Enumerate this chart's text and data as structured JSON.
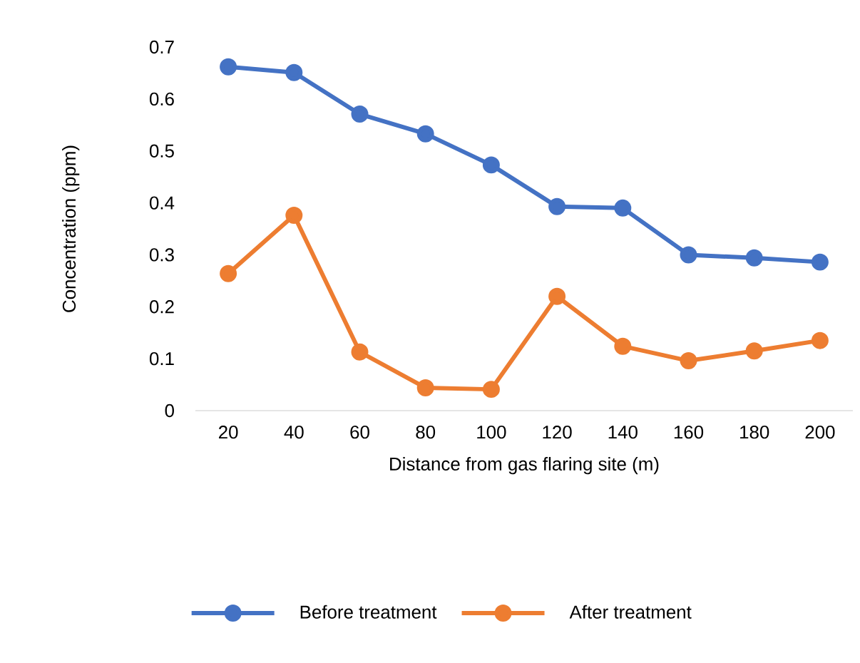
{
  "chart_data": {
    "type": "line",
    "xlabel": "Distance from gas flaring site (m)",
    "ylabel": "Concentration (ppm)",
    "categories": [
      "20",
      "40",
      "60",
      "80",
      "100",
      "120",
      "140",
      "160",
      "180",
      "200"
    ],
    "series": [
      {
        "name": "Before treatment",
        "color": "#4472c4",
        "values": [
          0.662,
          0.651,
          0.571,
          0.533,
          0.473,
          0.393,
          0.39,
          0.3,
          0.294,
          0.286
        ]
      },
      {
        "name": "After treatment",
        "color": "#ed7d31",
        "values": [
          0.264,
          0.376,
          0.113,
          0.044,
          0.041,
          0.22,
          0.124,
          0.096,
          0.115,
          0.135
        ]
      }
    ],
    "ylim": [
      0,
      0.7
    ],
    "yticks": [
      0,
      0.1,
      0.2,
      0.3,
      0.4,
      0.5,
      0.6,
      0.7
    ],
    "grid": false,
    "legend": "bottom",
    "marker": "circle",
    "line_style": "solid"
  }
}
